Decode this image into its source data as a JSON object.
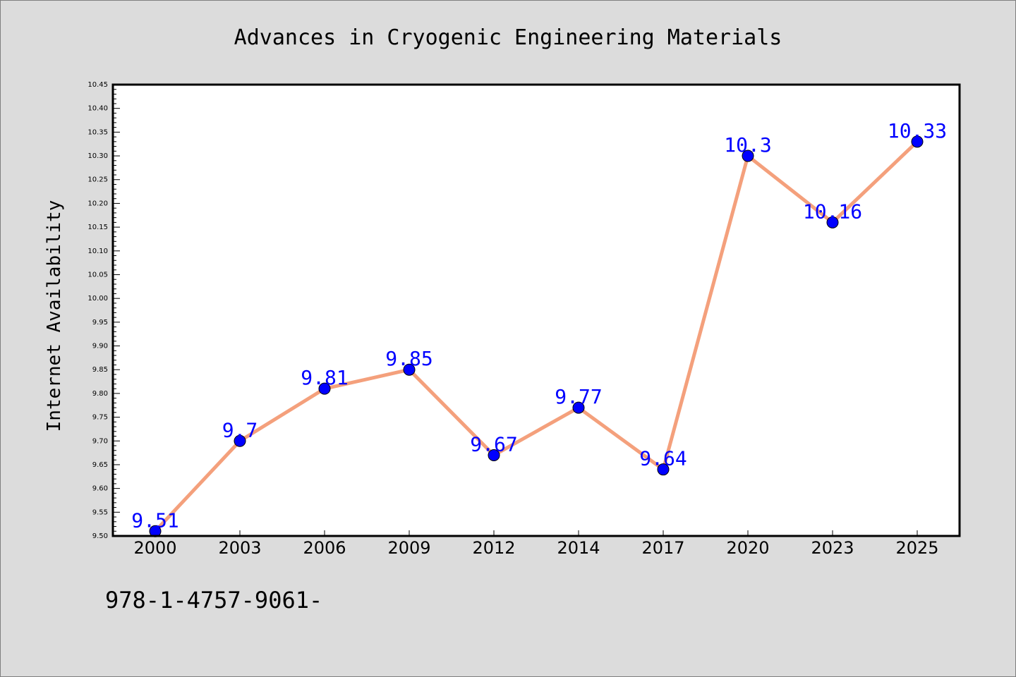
{
  "isbn_text": "978-1-4757-9061-",
  "chart_data": {
    "type": "line",
    "title": "Advances in Cryogenic Engineering Materials",
    "xlabel": "",
    "ylabel": "Internet Availability",
    "categories": [
      "2000",
      "2003",
      "2006",
      "2009",
      "2012",
      "2014",
      "2017",
      "2020",
      "2023",
      "2025"
    ],
    "series": [
      {
        "values": [
          9.51,
          9.7,
          9.81,
          9.85,
          9.67,
          9.77,
          9.64,
          10.3,
          10.16,
          10.33
        ]
      }
    ],
    "data_labels": [
      "9.51",
      "9.7",
      "9.81",
      "9.85",
      "9.67",
      "9.77",
      "9.64",
      "10.3",
      "10.16",
      "10.33"
    ],
    "ylim": [
      9.5,
      10.45
    ],
    "yticks": [
      "9.50",
      "9.55",
      "9.60",
      "9.65",
      "9.70",
      "9.75",
      "9.80",
      "9.85",
      "9.90",
      "9.95",
      "10.00",
      "10.05",
      "10.10",
      "10.15",
      "10.20",
      "10.25",
      "10.30",
      "10.35",
      "10.40",
      "10.45"
    ],
    "grid": false,
    "legend": "none",
    "colors": {
      "line": "#f4a07c",
      "marker": "#0000ff",
      "label": "#0000ff",
      "background": "#dcdcdc",
      "plot_background": "#ffffff"
    }
  }
}
